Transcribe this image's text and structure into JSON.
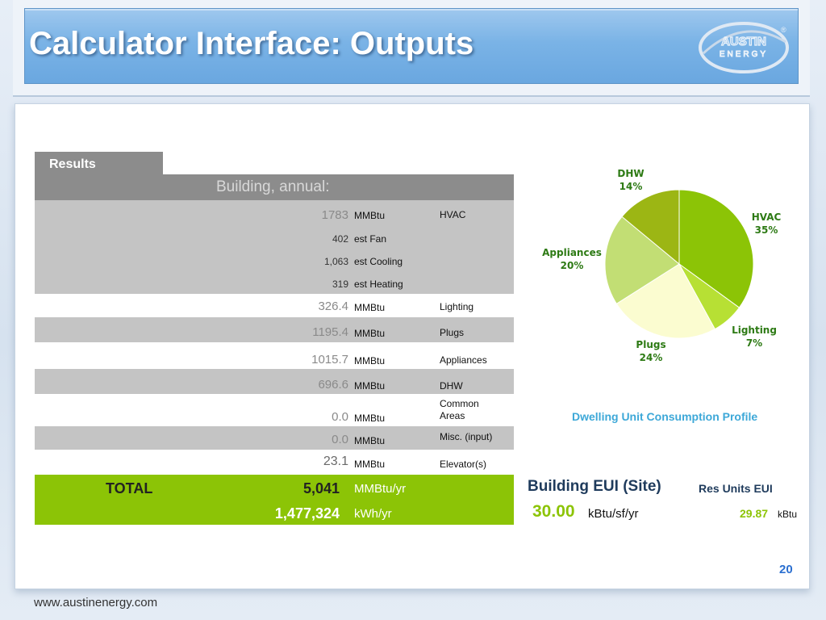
{
  "header": {
    "title": "Calculator Interface: Outputs"
  },
  "logo": {
    "line1": "AUSTIN",
    "line2": "ENERGY",
    "mark": "®"
  },
  "results": {
    "tab_label": "Results",
    "section_label": "Building, annual:",
    "rows": [
      {
        "value": "1783",
        "unit": "MMBtu",
        "category": "HVAC"
      },
      {
        "value": "402",
        "unit": "est Fan",
        "category": ""
      },
      {
        "value": "1,063",
        "unit": "est Cooling",
        "category": ""
      },
      {
        "value": "319",
        "unit": "est Heating",
        "category": ""
      },
      {
        "value": "326.4",
        "unit": "MMBtu",
        "category": "Lighting"
      },
      {
        "value": "1195.4",
        "unit": "MMBtu",
        "category": "Plugs"
      },
      {
        "value": "1015.7",
        "unit": "MMBtu",
        "category": "Appliances"
      },
      {
        "value": "696.6",
        "unit": "MMBtu",
        "category": "DHW"
      },
      {
        "value": "0.0",
        "unit": "MMBtu",
        "category": "Common Areas"
      },
      {
        "value": "0.0",
        "unit": "MMBtu",
        "category": "Misc. (input)"
      },
      {
        "value": "23.1",
        "unit": "MMBtu",
        "category": "Elevator(s)"
      }
    ],
    "total": {
      "label": "TOTAL",
      "mmbtu_value": "5,041",
      "mmbtu_unit": "MMBtu/yr",
      "kwh_value": "1,477,324",
      "kwh_unit": "kWh/yr"
    }
  },
  "eui": {
    "building_title": "Building EUI (Site)",
    "building_value": "30.00",
    "building_unit": "kBtu/sf/yr",
    "res_title": "Res Units EUI",
    "res_value": "29.87",
    "res_unit": "kBtu"
  },
  "chart_data": {
    "type": "pie",
    "title": "Dwelling Unit Consumption Profile",
    "slices": [
      {
        "name": "HVAC",
        "value": 35,
        "label": "35%",
        "color": "#8cc406"
      },
      {
        "name": "Lighting",
        "value": 7,
        "label": "7%",
        "color": "#b7e034"
      },
      {
        "name": "Plugs",
        "value": 24,
        "label": "24%",
        "color": "#fbfcd0"
      },
      {
        "name": "Appliances",
        "value": 20,
        "label": "20%",
        "color": "#c2de74"
      },
      {
        "name": "DHW",
        "value": 14,
        "label": "14%",
        "color": "#9cb614"
      }
    ]
  },
  "footer": {
    "url": "www.austinenergy.com",
    "page_number": "20"
  }
}
